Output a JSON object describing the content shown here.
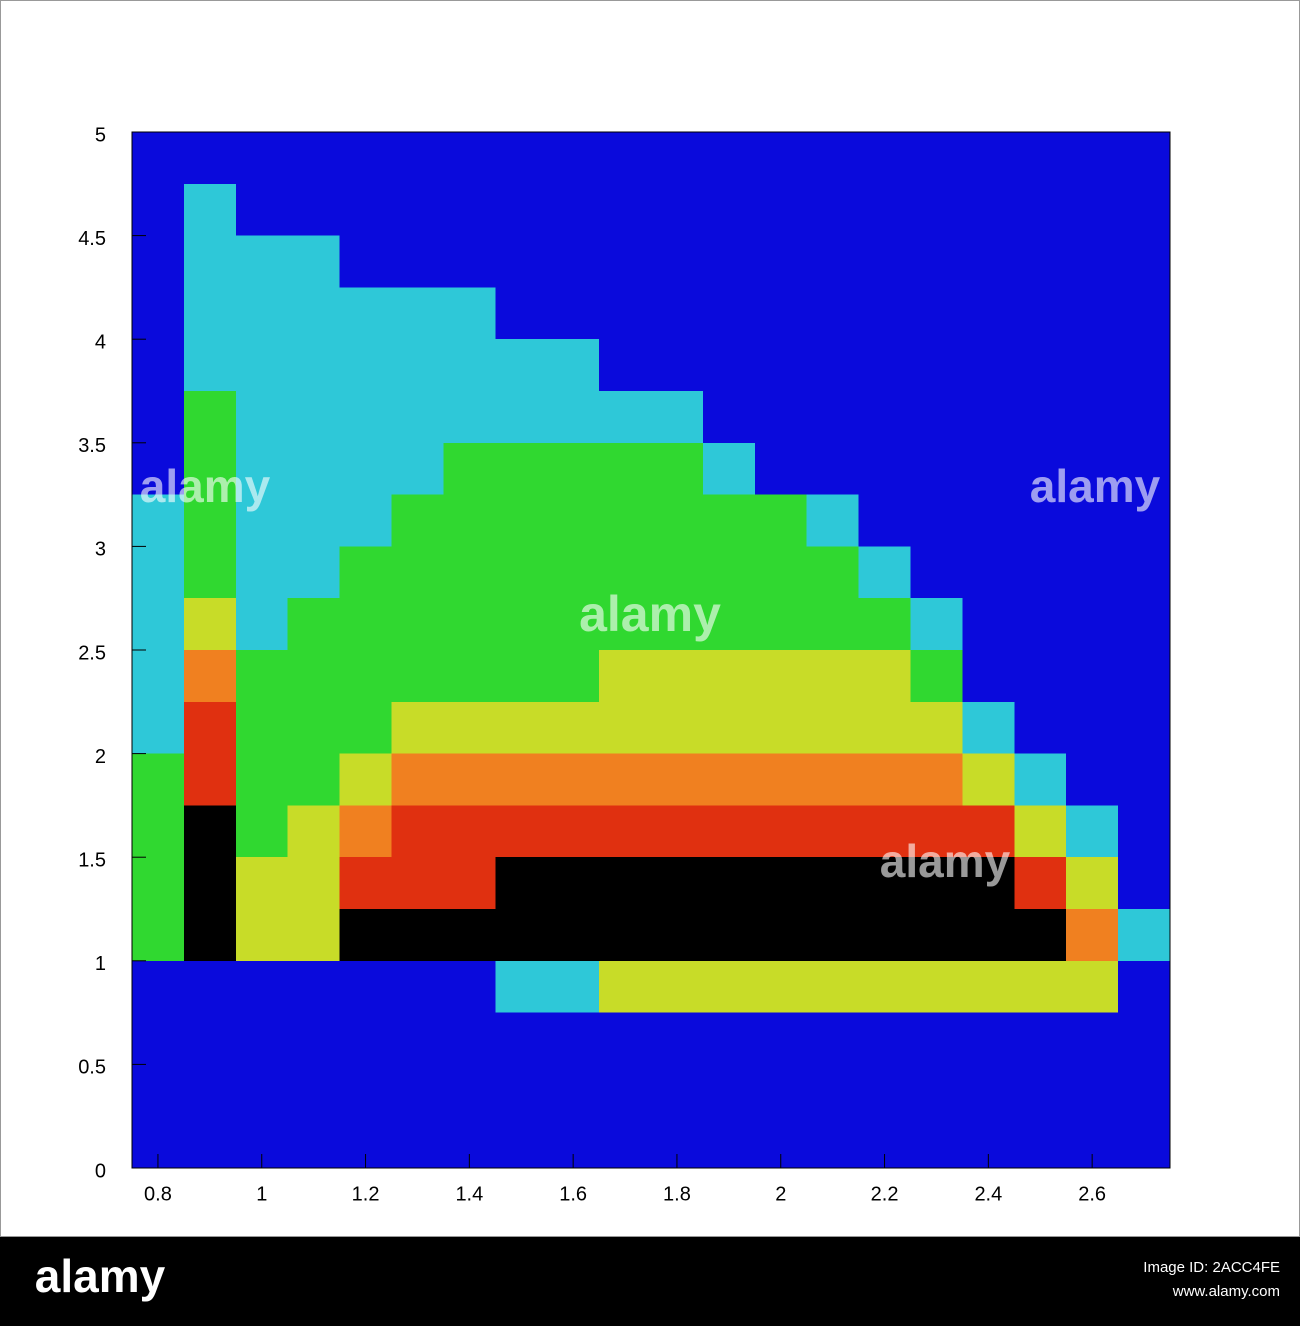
{
  "chart_data": {
    "type": "heatmap",
    "xlim": [
      0.75,
      2.75
    ],
    "ylim": [
      0,
      5
    ],
    "xticks": [
      0.8,
      1,
      1.2,
      1.4,
      1.6,
      1.8,
      2,
      2.2,
      2.4,
      2.6
    ],
    "yticks": [
      0,
      0.5,
      1,
      1.5,
      2,
      2.5,
      3,
      3.5,
      4,
      4.5,
      5
    ],
    "xbins": [
      0.75,
      0.85,
      0.95,
      1.05,
      1.15,
      1.25,
      1.35,
      1.45,
      1.55,
      1.65,
      1.75,
      1.85,
      1.95,
      2.05,
      2.15,
      2.25,
      2.35,
      2.45,
      2.55,
      2.65,
      2.75
    ],
    "ybins": [
      0,
      0.25,
      0.5,
      0.75,
      1,
      1.25,
      1.5,
      1.75,
      2,
      2.25,
      2.5,
      2.75,
      3,
      3.25,
      3.5,
      3.75,
      4,
      4.25,
      4.5,
      4.75,
      5
    ],
    "colorscale": [
      "#0a0adc",
      "#2ec8d8",
      "#30d830",
      "#c8dc28",
      "#f08020",
      "#e03010",
      "#000000"
    ],
    "values": [
      [
        0,
        0,
        0,
        0,
        0,
        0,
        0,
        0,
        0,
        0,
        0,
        0,
        0,
        0,
        0,
        0,
        0,
        0,
        0,
        0
      ],
      [
        0,
        0,
        0,
        0,
        0,
        0,
        0,
        0,
        0,
        0,
        0,
        0,
        0,
        0,
        0,
        0,
        0,
        0,
        0,
        0
      ],
      [
        0,
        0,
        0,
        0,
        0,
        0,
        0,
        0,
        0,
        0,
        0,
        0,
        0,
        0,
        0,
        0,
        0,
        0,
        0,
        0
      ],
      [
        0,
        0,
        0,
        0,
        0,
        0,
        0,
        1,
        1,
        3,
        3,
        3,
        3,
        3,
        3,
        3,
        3,
        3,
        3,
        0
      ],
      [
        2,
        6,
        3,
        3,
        6,
        6,
        6,
        6,
        6,
        6,
        6,
        6,
        6,
        6,
        6,
        6,
        6,
        6,
        4,
        1
      ],
      [
        2,
        6,
        3,
        3,
        5,
        5,
        5,
        6,
        6,
        6,
        6,
        6,
        6,
        6,
        6,
        6,
        6,
        5,
        3,
        0
      ],
      [
        2,
        6,
        2,
        3,
        4,
        5,
        5,
        5,
        5,
        5,
        5,
        5,
        5,
        5,
        5,
        5,
        5,
        3,
        1,
        0
      ],
      [
        2,
        5,
        2,
        2,
        3,
        4,
        4,
        4,
        4,
        4,
        4,
        4,
        4,
        4,
        4,
        4,
        3,
        1,
        0,
        0
      ],
      [
        1,
        5,
        2,
        2,
        2,
        3,
        3,
        3,
        3,
        3,
        3,
        3,
        3,
        3,
        3,
        3,
        1,
        0,
        0,
        0
      ],
      [
        1,
        4,
        2,
        2,
        2,
        2,
        2,
        2,
        2,
        3,
        3,
        3,
        3,
        3,
        3,
        2,
        0,
        0,
        0,
        0
      ],
      [
        1,
        3,
        1,
        2,
        2,
        2,
        2,
        2,
        2,
        2,
        2,
        2,
        2,
        2,
        2,
        1,
        0,
        0,
        0,
        0
      ],
      [
        1,
        2,
        1,
        1,
        2,
        2,
        2,
        2,
        2,
        2,
        2,
        2,
        2,
        2,
        1,
        0,
        0,
        0,
        0,
        0
      ],
      [
        1,
        2,
        1,
        1,
        1,
        2,
        2,
        2,
        2,
        2,
        2,
        2,
        2,
        1,
        0,
        0,
        0,
        0,
        0,
        0
      ],
      [
        0,
        2,
        1,
        1,
        1,
        1,
        2,
        2,
        2,
        2,
        2,
        1,
        0,
        0,
        0,
        0,
        0,
        0,
        0,
        0
      ],
      [
        0,
        2,
        1,
        1,
        1,
        1,
        1,
        1,
        1,
        1,
        1,
        0,
        0,
        0,
        0,
        0,
        0,
        0,
        0,
        0
      ],
      [
        0,
        1,
        1,
        1,
        1,
        1,
        1,
        1,
        1,
        0,
        0,
        0,
        0,
        0,
        0,
        0,
        0,
        0,
        0,
        0
      ],
      [
        0,
        1,
        1,
        1,
        1,
        1,
        1,
        0,
        0,
        0,
        0,
        0,
        0,
        0,
        0,
        0,
        0,
        0,
        0,
        0
      ],
      [
        0,
        1,
        1,
        1,
        0,
        0,
        0,
        0,
        0,
        0,
        0,
        0,
        0,
        0,
        0,
        0,
        0,
        0,
        0,
        0
      ],
      [
        0,
        1,
        0,
        0,
        0,
        0,
        0,
        0,
        0,
        0,
        0,
        0,
        0,
        0,
        0,
        0,
        0,
        0,
        0,
        0
      ],
      [
        0,
        0,
        0,
        0,
        0,
        0,
        0,
        0,
        0,
        0,
        0,
        0,
        0,
        0,
        0,
        0,
        0,
        0,
        0,
        0
      ]
    ]
  },
  "watermark": "alamy",
  "footer": {
    "logo": "alamy",
    "image_id": "Image ID: 2ACC4FE",
    "url": "www.alamy.com"
  }
}
